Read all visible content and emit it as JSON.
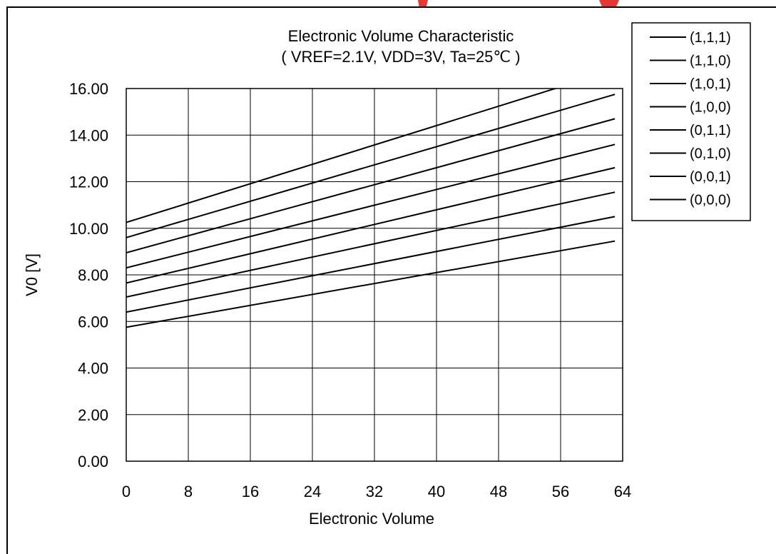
{
  "colors": {
    "line": "#000000",
    "grid": "#000000",
    "background": "#ffffff",
    "watermark": "#e53935"
  },
  "chart_data": {
    "type": "line",
    "title": "Electronic Volume Characteristic",
    "subtitle": "( VREF=2.1V, VDD=3V, Ta=25℃ )",
    "xlabel": "Electronic Volume",
    "ylabel": "V0 [V]",
    "xlim": [
      0,
      64
    ],
    "ylim": [
      0,
      16
    ],
    "x_tick_labels": [
      "0",
      "8",
      "16",
      "24",
      "32",
      "40",
      "48",
      "56",
      "64"
    ],
    "y_tick_labels": [
      "0.00",
      "2.00",
      "4.00",
      "6.00",
      "8.00",
      "10.00",
      "12.00",
      "14.00",
      "16.00"
    ],
    "grid": true,
    "legend_position": "right",
    "series": [
      {
        "name": "(1,1,1)",
        "x": [
          0,
          63
        ],
        "y": [
          10.25,
          16.8
        ]
      },
      {
        "name": "(1,1,0)",
        "x": [
          0,
          63
        ],
        "y": [
          9.6,
          15.75
        ]
      },
      {
        "name": "(1,0,1)",
        "x": [
          0,
          63
        ],
        "y": [
          8.95,
          14.7
        ]
      },
      {
        "name": "(1,0,0)",
        "x": [
          0,
          63
        ],
        "y": [
          8.3,
          13.6
        ]
      },
      {
        "name": "(0,1,1)",
        "x": [
          0,
          63
        ],
        "y": [
          7.65,
          12.6
        ]
      },
      {
        "name": "(0,1,0)",
        "x": [
          0,
          63
        ],
        "y": [
          7.05,
          11.55
        ]
      },
      {
        "name": "(0,0,1)",
        "x": [
          0,
          63
        ],
        "y": [
          6.4,
          10.5
        ]
      },
      {
        "name": "(0,0,0)",
        "x": [
          0,
          63
        ],
        "y": [
          5.75,
          9.45
        ]
      }
    ]
  }
}
